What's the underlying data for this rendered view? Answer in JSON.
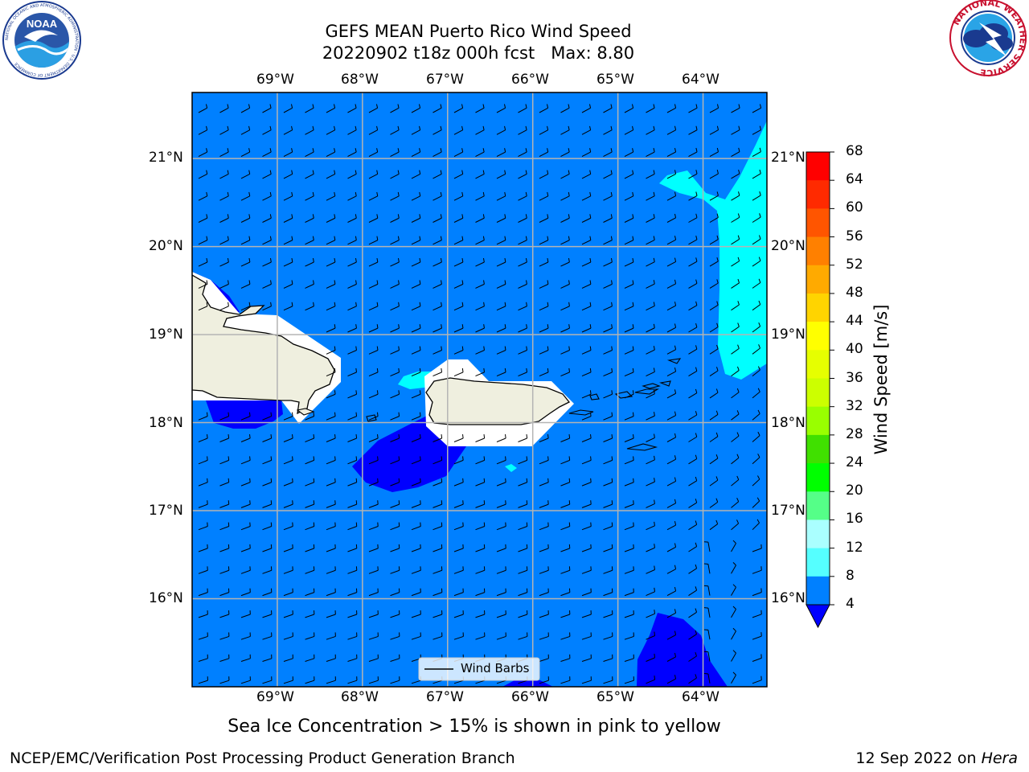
{
  "header": {
    "title_line1": "GEFS MEAN Puerto Rico Wind Speed",
    "title_line2": "20220902 t18z 000h fcst   Max: 8.80"
  },
  "logos": {
    "left": {
      "name": "noaa-logo",
      "text": "NOAA",
      "ring_text": "NATIONAL OCEANIC AND ATMOSPHERIC ADMINISTRATION · U.S. DEPARTMENT OF COMMERCE"
    },
    "right": {
      "name": "nws-logo",
      "ring_text": "NATIONAL WEATHER SERVICE"
    }
  },
  "map": {
    "lon_range": [
      -70.0,
      -63.25
    ],
    "lat_range": [
      15.0,
      21.75
    ],
    "lon_ticks": [
      "69°W",
      "68°W",
      "67°W",
      "66°W",
      "65°W",
      "64°W"
    ],
    "lat_ticks": [
      "21°N",
      "20°N",
      "19°N",
      "18°N",
      "17°N",
      "16°N"
    ],
    "grid": true,
    "background_color": "#0080ff",
    "land_color": "#efefdf",
    "legend": {
      "label": "Wind Barbs",
      "placement": "bottom-center"
    }
  },
  "colorbar": {
    "label": "Wind Speed [m/s]",
    "ticks": [
      "68",
      "64",
      "60",
      "56",
      "52",
      "48",
      "44",
      "40",
      "36",
      "32",
      "28",
      "24",
      "20",
      "16",
      "12",
      "8",
      "4"
    ],
    "colors": [
      "#ff0000",
      "#ff2a00",
      "#ff5500",
      "#ff8000",
      "#ffaa00",
      "#ffd400",
      "#ffff00",
      "#e6ff00",
      "#ccff00",
      "#99ff00",
      "#40e000",
      "#00ff00",
      "#55ff88",
      "#aaffff",
      "#55ffff",
      "#00ffff",
      "#0080ff"
    ],
    "under_color": "#0000ff"
  },
  "chart_data": {
    "type": "contourf",
    "field": "wind_speed_m_s",
    "max": 8.8,
    "levels": [
      4,
      8,
      12,
      16,
      20,
      24,
      28,
      32,
      36,
      40,
      44,
      48,
      52,
      56,
      60,
      64,
      68
    ],
    "regions": [
      {
        "level_band": "<4",
        "areas": [
          "south of Hispaniola near 69.5°W 18.1°N",
          "Mona Passage south 67.5°W 17.6°N",
          "64.5°W 15.3°N southeast"
        ]
      },
      {
        "level_band": "4-8",
        "areas": [
          "most of domain"
        ]
      },
      {
        "level_band": "8-12",
        "areas": [
          "northeast 63.5°W 19–21°N",
          "near 67.3°W 18.5°N",
          "near 66.2°W 17.4°N"
        ]
      }
    ]
  },
  "footer": {
    "note": "Sea Ice Concentration > 15% is shown in pink to yellow",
    "left": "NCEP/EMC/Verification Post Processing Product Generation Branch",
    "date_prefix": "12 Sep 2022 on ",
    "machine": "Hera"
  }
}
